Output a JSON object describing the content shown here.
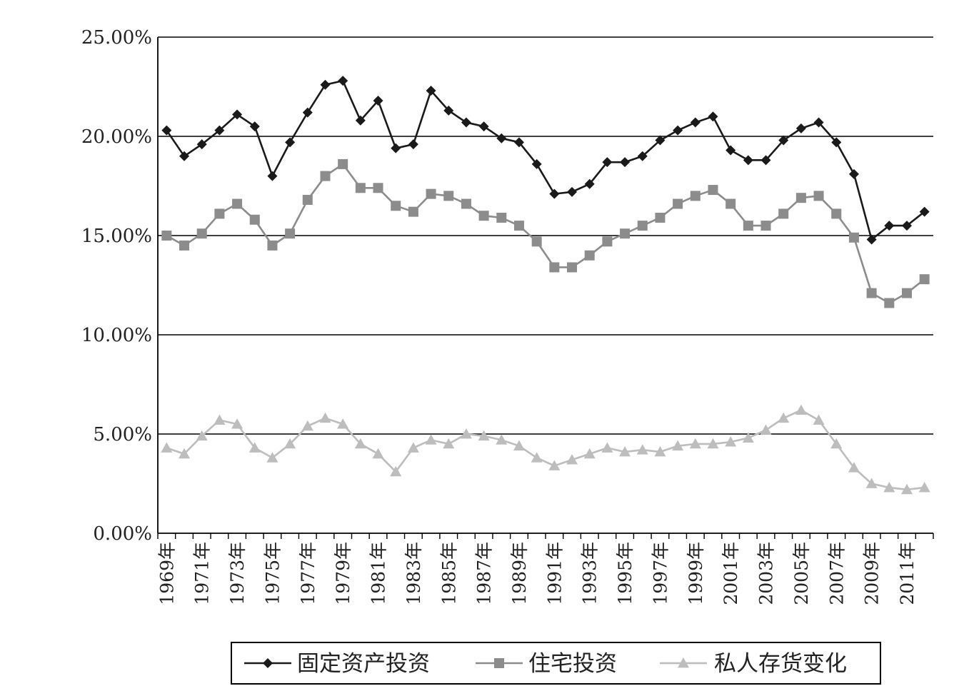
{
  "chart_data": {
    "type": "line",
    "title": "",
    "xlabel": "",
    "ylabel": "",
    "ylim": [
      0,
      25
    ],
    "y_ticks": [
      "0.00%",
      "5.00%",
      "10.00%",
      "15.00%",
      "20.00%",
      "25.00%"
    ],
    "y_tick_values": [
      0,
      5,
      10,
      15,
      20,
      25
    ],
    "grid": "horizontal",
    "legend_position": "bottom",
    "x": [
      1969,
      1970,
      1971,
      1972,
      1973,
      1974,
      1975,
      1976,
      1977,
      1978,
      1979,
      1980,
      1981,
      1982,
      1983,
      1984,
      1985,
      1986,
      1987,
      1988,
      1989,
      1990,
      1991,
      1992,
      1993,
      1994,
      1995,
      1996,
      1997,
      1998,
      1999,
      2000,
      2001,
      2002,
      2003,
      2004,
      2005,
      2006,
      2007,
      2008,
      2009,
      2010,
      2011,
      2012
    ],
    "x_tick_labels": [
      "1969年",
      "1971年",
      "1973年",
      "1975年",
      "1977年",
      "1979年",
      "1981年",
      "1983年",
      "1985年",
      "1987年",
      "1989年",
      "1991年",
      "1993年",
      "1995年",
      "1997年",
      "1999年",
      "2001年",
      "2003年",
      "2005年",
      "2007年",
      "2009年",
      "2011年"
    ],
    "series": [
      {
        "name": "固定资产投资",
        "color": "#1a1a1a",
        "marker": "diamond",
        "values": [
          20.3,
          19.0,
          19.6,
          20.3,
          21.1,
          20.5,
          18.0,
          19.7,
          21.2,
          22.6,
          22.8,
          20.8,
          21.8,
          19.4,
          19.6,
          22.3,
          21.3,
          20.7,
          20.5,
          19.9,
          19.7,
          18.6,
          17.1,
          17.2,
          17.6,
          18.7,
          18.7,
          19.0,
          19.8,
          20.3,
          20.7,
          21.0,
          19.3,
          18.8,
          18.8,
          19.8,
          20.4,
          20.7,
          19.7,
          18.1,
          14.8,
          15.5,
          15.5,
          16.2
        ]
      },
      {
        "name": "住宅投资",
        "color": "#8c8c8c",
        "marker": "square",
        "values": [
          15.0,
          14.5,
          15.1,
          16.1,
          16.6,
          15.8,
          14.5,
          15.1,
          16.8,
          18.0,
          18.6,
          17.4,
          17.4,
          16.5,
          16.2,
          17.1,
          17.0,
          16.6,
          16.0,
          15.9,
          15.5,
          14.7,
          13.4,
          13.4,
          14.0,
          14.7,
          15.1,
          15.5,
          15.9,
          16.6,
          17.0,
          17.3,
          16.6,
          15.5,
          15.5,
          16.1,
          16.9,
          17.0,
          16.1,
          14.9,
          12.1,
          11.6,
          12.1,
          12.8
        ]
      },
      {
        "name": "私人存货变化",
        "color": "#bdbdbd",
        "marker": "triangle",
        "values": [
          4.3,
          4.0,
          4.9,
          5.7,
          5.5,
          4.3,
          3.8,
          4.5,
          5.4,
          5.8,
          5.5,
          4.5,
          4.0,
          3.1,
          4.3,
          4.7,
          4.5,
          5.0,
          4.9,
          4.7,
          4.4,
          3.8,
          3.4,
          3.7,
          4.0,
          4.3,
          4.1,
          4.2,
          4.1,
          4.4,
          4.5,
          4.5,
          4.6,
          4.8,
          5.2,
          5.8,
          6.2,
          5.7,
          4.5,
          3.3,
          2.5,
          2.3,
          2.2,
          2.3
        ]
      }
    ]
  }
}
